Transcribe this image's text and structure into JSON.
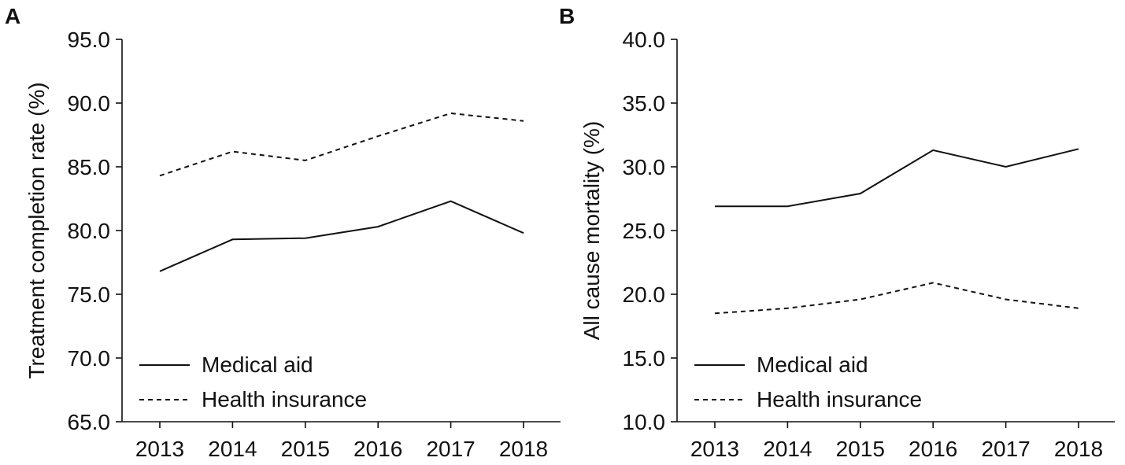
{
  "chart_data": [
    {
      "type": "line",
      "panel_label": "A",
      "title": "",
      "xlabel": "",
      "ylabel": "Treatment completion rate (%)",
      "categories": [
        "2013",
        "2014",
        "2015",
        "2016",
        "2017",
        "2018"
      ],
      "ylim": [
        65.0,
        95.0
      ],
      "yticks": [
        "65.0",
        "70.0",
        "75.0",
        "80.0",
        "85.0",
        "90.0",
        "95.0"
      ],
      "legend_position": "bottom-left",
      "series": [
        {
          "name": "Medical aid",
          "style": "solid",
          "values": [
            76.8,
            79.3,
            79.4,
            80.3,
            82.3,
            79.8
          ]
        },
        {
          "name": "Health insurance",
          "style": "dashed",
          "values": [
            84.3,
            86.2,
            85.5,
            87.4,
            89.2,
            88.6
          ]
        }
      ]
    },
    {
      "type": "line",
      "panel_label": "B",
      "title": "",
      "xlabel": "",
      "ylabel": "All cause mortality (%)",
      "categories": [
        "2013",
        "2014",
        "2015",
        "2016",
        "2017",
        "2018"
      ],
      "ylim": [
        10.0,
        40.0
      ],
      "yticks": [
        "10.0",
        "15.0",
        "20.0",
        "25.0",
        "30.0",
        "35.0",
        "40.0"
      ],
      "legend_position": "bottom-left",
      "series": [
        {
          "name": "Medical aid",
          "style": "solid",
          "values": [
            26.9,
            26.9,
            27.9,
            31.3,
            30.0,
            31.4
          ]
        },
        {
          "name": "Health insurance",
          "style": "dashed",
          "values": [
            18.5,
            18.9,
            19.6,
            20.9,
            19.6,
            18.9
          ]
        }
      ]
    }
  ]
}
